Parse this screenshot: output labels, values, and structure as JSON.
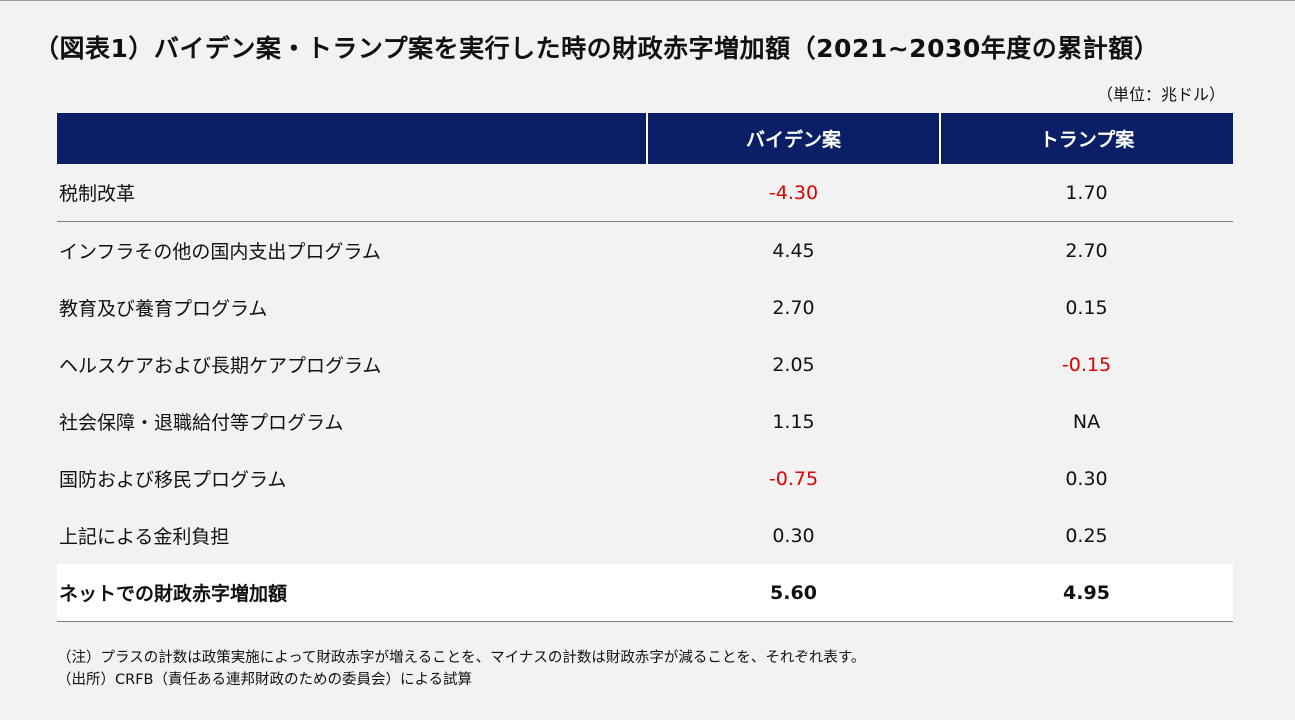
{
  "title": "（図表1）バイデン案・トランプ案を実行した時の財政赤字増加額（2021~2030年度の累計額）",
  "unit": "（単位：兆ドル）",
  "table": {
    "headers": [
      "",
      "バイデン案",
      "トランプ案"
    ],
    "rows": [
      {
        "item": "税制改革",
        "biden": "-4.30",
        "trump": "1.70"
      },
      {
        "item": "インフラその他の国内支出プログラム",
        "biden": "4.45",
        "trump": "2.70"
      },
      {
        "item": "教育及び養育プログラム",
        "biden": "2.70",
        "trump": "0.15"
      },
      {
        "item": "ヘルスケアおよび長期ケアプログラム",
        "biden": "2.05",
        "trump": "-0.15"
      },
      {
        "item": "社会保障・退職給付等プログラム",
        "biden": "1.15",
        "trump": "NA"
      },
      {
        "item": "国防および移民プログラム",
        "biden": "-0.75",
        "trump": "0.30"
      },
      {
        "item": "上記による金利負担",
        "biden": "0.30",
        "trump": "0.25"
      }
    ],
    "total": {
      "item": "ネットでの財政赤字増加額",
      "biden": "5.60",
      "trump": "4.95"
    }
  },
  "notes": [
    "（注）プラスの計数は政策実施によって財政赤字が増えることを、マイナスの計数は財政赤字が減ることを、それぞれ表す。",
    "（出所）CRFB（責任ある連邦財政のための委員会）による試算"
  ],
  "colors": {
    "header_bg": "#0b1f66",
    "negative_value": "#e00000",
    "figure_bg": "#f2f2f2"
  }
}
